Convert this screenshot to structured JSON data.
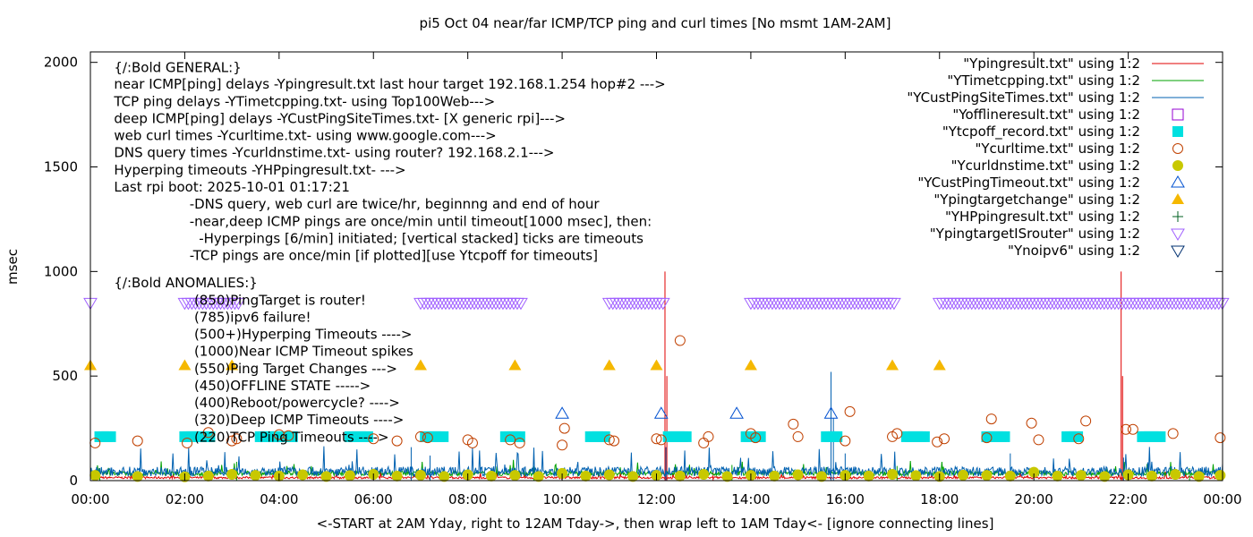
{
  "chart_data": {
    "type": "line",
    "title": "pi5 Oct 04  near/far ICMP/TCP ping and curl times [No msmt 1AM-2AM]",
    "xlabel": "<-START at 2AM Yday, right to 12AM Tday->, then wrap left to 1AM Tday<- [ignore connecting lines]",
    "ylabel": "msec",
    "xlim": [
      0,
      24
    ],
    "ylim": [
      0,
      2050
    ],
    "grid": false,
    "legend_position": "top-right",
    "x_ticks": [
      {
        "v": 0,
        "label": "00:00"
      },
      {
        "v": 2,
        "label": "02:00"
      },
      {
        "v": 4,
        "label": "04:00"
      },
      {
        "v": 6,
        "label": "06:00"
      },
      {
        "v": 8,
        "label": "08:00"
      },
      {
        "v": 10,
        "label": "10:00"
      },
      {
        "v": 12,
        "label": "12:00"
      },
      {
        "v": 14,
        "label": "14:00"
      },
      {
        "v": 16,
        "label": "16:00"
      },
      {
        "v": 18,
        "label": "18:00"
      },
      {
        "v": 20,
        "label": "20:00"
      },
      {
        "v": 22,
        "label": "22:00"
      },
      {
        "v": 24,
        "label": "00:00"
      }
    ],
    "y_ticks": [
      {
        "v": 0,
        "label": "0"
      },
      {
        "v": 500,
        "label": "500"
      },
      {
        "v": 1000,
        "label": "1000"
      },
      {
        "v": 1500,
        "label": "1500"
      },
      {
        "v": 2000,
        "label": "2000"
      }
    ],
    "annotations": [
      {
        "x": 0.5,
        "y": 1975,
        "text": "{/:Bold GENERAL:}"
      },
      {
        "x": 0.5,
        "y": 1895,
        "text": "near ICMP[ping] delays -Ypingresult.txt last hour target 192.168.1.254 hop#2 --->"
      },
      {
        "x": 0.5,
        "y": 1813,
        "text": "TCP ping delays -YTimetcpping.txt- using Top100Web--->"
      },
      {
        "x": 0.5,
        "y": 1731,
        "text": "deep ICMP[ping] delays -YCustPingSiteTimes.txt- [X generic rpi]--->"
      },
      {
        "x": 0.5,
        "y": 1650,
        "text": "web curl times -Ycurltime.txt- using www.google.com--->"
      },
      {
        "x": 0.5,
        "y": 1568,
        "text": "DNS query times -Ycurldnstime.txt- using router? 192.168.2.1--->"
      },
      {
        "x": 0.5,
        "y": 1486,
        "text": "Hyperping timeouts -YHPpingresult.txt- --->"
      },
      {
        "x": 0.5,
        "y": 1404,
        "text": "Last rpi boot: 2025-10-01 01:17:21"
      },
      {
        "x": 2.1,
        "y": 1322,
        "text": "-DNS query, web curl are twice/hr, beginnng and end of hour"
      },
      {
        "x": 2.1,
        "y": 1240,
        "text": "-near,deep ICMP pings are once/min until timeout[1000 msec], then:"
      },
      {
        "x": 2.3,
        "y": 1158,
        "text": "-Hyperpings [6/min] initiated; [vertical stacked] ticks are timeouts"
      },
      {
        "x": 2.1,
        "y": 1077,
        "text": "-TCP pings are once/min [if plotted][use Ytcpoff for timeouts]"
      },
      {
        "x": 0.5,
        "y": 945,
        "text": "{/:Bold ANOMALIES:}"
      },
      {
        "x": 2.2,
        "y": 863,
        "text": "(850)PingTarget is router!"
      },
      {
        "x": 2.2,
        "y": 781,
        "text": "(785)ipv6 failure!"
      },
      {
        "x": 2.2,
        "y": 700,
        "text": "(500+)Hyperping Timeouts ---->"
      },
      {
        "x": 2.2,
        "y": 618,
        "text": "(1000)Near ICMP Timeout spikes"
      },
      {
        "x": 2.2,
        "y": 536,
        "text": "(550)Ping Target Changes --->"
      },
      {
        "x": 2.2,
        "y": 454,
        "text": "(450)OFFLINE STATE ----->"
      },
      {
        "x": 2.2,
        "y": 372,
        "text": "(400)Reboot/powercycle? ---->"
      },
      {
        "x": 2.2,
        "y": 290,
        "text": "(320)Deep ICMP Timeouts ---->"
      },
      {
        "x": 2.2,
        "y": 208,
        "text": "(220)TCP Ping Timeouts ---->"
      }
    ],
    "series": [
      {
        "name": "\"Ypingresult.txt\" using 1:2",
        "style": "line",
        "color": "#e00000",
        "base": 12,
        "jitter": 10,
        "spikes": [
          [
            12.18,
            1000
          ],
          [
            12.22,
            500
          ],
          [
            21.85,
            1000
          ],
          [
            21.88,
            500
          ],
          [
            13.2,
            40
          ],
          [
            15.0,
            35
          ]
        ]
      },
      {
        "name": "\"YTimetcpping.txt\" using 1:2",
        "style": "line",
        "color": "#00a000",
        "base": 30,
        "jitter": 22,
        "spikes": [
          [
            0.2,
            60
          ],
          [
            3.1,
            90
          ],
          [
            9.4,
            70
          ],
          [
            13.6,
            75
          ],
          [
            17.1,
            70
          ],
          [
            23.3,
            60
          ]
        ]
      },
      {
        "name": "\"YCustPingSiteTimes.txt\" using 1:2",
        "style": "line",
        "color": "#0060b0",
        "base": 35,
        "jitter": 45,
        "spikes": [
          [
            6.8,
            160
          ],
          [
            7.2,
            120
          ],
          [
            12.2,
            160
          ],
          [
            15.7,
            520
          ],
          [
            15.75,
            300
          ],
          [
            16.0,
            130
          ],
          [
            19.5,
            130
          ],
          [
            21.9,
            110
          ]
        ]
      },
      {
        "name": "\"Yofflineresult.txt\" using 1:2",
        "style": "open-square",
        "color": "#9400d3",
        "points": []
      },
      {
        "name": "\"Ytcpoff_record.txt\" using 1:2",
        "style": "filled-square",
        "color": "#00e0e0",
        "segments": [
          [
            0.2,
            0.45
          ],
          [
            2.0,
            2.55
          ],
          [
            3.6,
            4.3
          ],
          [
            5.5,
            5.9
          ],
          [
            7.1,
            7.5
          ],
          [
            8.8,
            9.15
          ],
          [
            10.6,
            10.95
          ],
          [
            12.25,
            12.7
          ],
          [
            13.9,
            14.25
          ],
          [
            15.6,
            15.9
          ],
          [
            17.3,
            17.75
          ],
          [
            19.0,
            19.4
          ],
          [
            20.7,
            21.0
          ],
          [
            22.3,
            22.7
          ]
        ],
        "y": 210
      },
      {
        "name": "\"Ycurltime.txt\" using 1:2",
        "style": "open-circle",
        "color": "#c04000",
        "points": [
          [
            0.1,
            180
          ],
          [
            1.0,
            190
          ],
          [
            2.05,
            180
          ],
          [
            2.5,
            230
          ],
          [
            3.0,
            190
          ],
          [
            3.1,
            200
          ],
          [
            4.0,
            220
          ],
          [
            4.2,
            215
          ],
          [
            6.0,
            200
          ],
          [
            6.5,
            190
          ],
          [
            7.0,
            210
          ],
          [
            7.15,
            205
          ],
          [
            8.0,
            195
          ],
          [
            8.1,
            180
          ],
          [
            8.9,
            195
          ],
          [
            9.1,
            180
          ],
          [
            10.0,
            170
          ],
          [
            10.05,
            250
          ],
          [
            11.0,
            195
          ],
          [
            11.1,
            190
          ],
          [
            12.0,
            200
          ],
          [
            12.1,
            195
          ],
          [
            12.5,
            670
          ],
          [
            13.0,
            180
          ],
          [
            13.1,
            210
          ],
          [
            14.0,
            225
          ],
          [
            14.1,
            205
          ],
          [
            14.9,
            270
          ],
          [
            15.0,
            210
          ],
          [
            16.0,
            190
          ],
          [
            16.1,
            330
          ],
          [
            17.0,
            210
          ],
          [
            17.1,
            225
          ],
          [
            17.95,
            185
          ],
          [
            18.1,
            200
          ],
          [
            19.0,
            205
          ],
          [
            19.1,
            295
          ],
          [
            19.95,
            275
          ],
          [
            20.1,
            195
          ],
          [
            20.95,
            200
          ],
          [
            21.1,
            285
          ],
          [
            21.95,
            245
          ],
          [
            22.1,
            245
          ],
          [
            22.95,
            225
          ],
          [
            23.95,
            205
          ]
        ]
      },
      {
        "name": "\"Ycurldnstime.txt\" using 1:2",
        "style": "filled-circle",
        "color": "#c8c800",
        "points": [
          [
            0.1,
            25
          ],
          [
            1.0,
            20
          ],
          [
            2.0,
            18
          ],
          [
            2.5,
            22
          ],
          [
            3.0,
            30
          ],
          [
            3.5,
            25
          ],
          [
            4.0,
            22
          ],
          [
            4.5,
            28
          ],
          [
            5.0,
            20
          ],
          [
            5.5,
            24
          ],
          [
            6.0,
            30
          ],
          [
            6.5,
            22
          ],
          [
            7.0,
            26
          ],
          [
            7.5,
            20
          ],
          [
            8.0,
            28
          ],
          [
            8.5,
            22
          ],
          [
            9.0,
            25
          ],
          [
            9.5,
            20
          ],
          [
            10.0,
            35
          ],
          [
            10.5,
            22
          ],
          [
            11.0,
            28
          ],
          [
            11.5,
            20
          ],
          [
            12.0,
            25
          ],
          [
            12.5,
            22
          ],
          [
            13.0,
            30
          ],
          [
            13.5,
            20
          ],
          [
            14.0,
            25
          ],
          [
            14.5,
            22
          ],
          [
            15.0,
            28
          ],
          [
            15.5,
            20
          ],
          [
            16.0,
            25
          ],
          [
            16.5,
            22
          ],
          [
            17.0,
            30
          ],
          [
            17.5,
            24
          ],
          [
            18.0,
            20
          ],
          [
            18.5,
            26
          ],
          [
            19.0,
            25
          ],
          [
            19.5,
            22
          ],
          [
            20.0,
            40
          ],
          [
            20.5,
            22
          ],
          [
            21.0,
            25
          ],
          [
            21.5,
            20
          ],
          [
            22.0,
            28
          ],
          [
            22.5,
            22
          ],
          [
            23.0,
            30
          ],
          [
            23.5,
            20
          ],
          [
            23.95,
            25
          ]
        ]
      },
      {
        "name": "\"YCustPingTimeout.txt\" using 1:2",
        "style": "open-triangle",
        "color": "#0050d0",
        "points": [
          [
            10.0,
            320
          ],
          [
            12.1,
            320
          ],
          [
            13.7,
            320
          ],
          [
            15.7,
            320
          ]
        ]
      },
      {
        "name": "\"Ypingtargetchange\" using 1:2",
        "style": "filled-triangle",
        "color": "#f5b800",
        "points": [
          [
            0.0,
            550
          ],
          [
            2.0,
            550
          ],
          [
            3.0,
            550
          ],
          [
            7.0,
            550
          ],
          [
            9.0,
            550
          ],
          [
            11.0,
            550
          ],
          [
            12.0,
            550
          ],
          [
            14.0,
            550
          ],
          [
            17.0,
            550
          ],
          [
            18.0,
            550
          ]
        ]
      },
      {
        "name": "\"YHPpingresult.txt\" using 1:2",
        "style": "plus",
        "color": "#006020",
        "points": []
      },
      {
        "name": "\"YpingtargetISrouter\" using 1:2",
        "style": "open-inv-triangle",
        "color": "#a060ff",
        "points": [
          [
            0.0,
            850
          ]
        ],
        "segments": [
          [
            2.0,
            3.2
          ],
          [
            7.0,
            9.15
          ],
          [
            11.0,
            12.2
          ],
          [
            14.0,
            17.1
          ],
          [
            18.0,
            24.0
          ]
        ],
        "y": 850
      },
      {
        "name": "\"Ynoipv6\" using 1:2",
        "style": "open-inv-triangle",
        "color": "#003070",
        "points": []
      }
    ]
  }
}
